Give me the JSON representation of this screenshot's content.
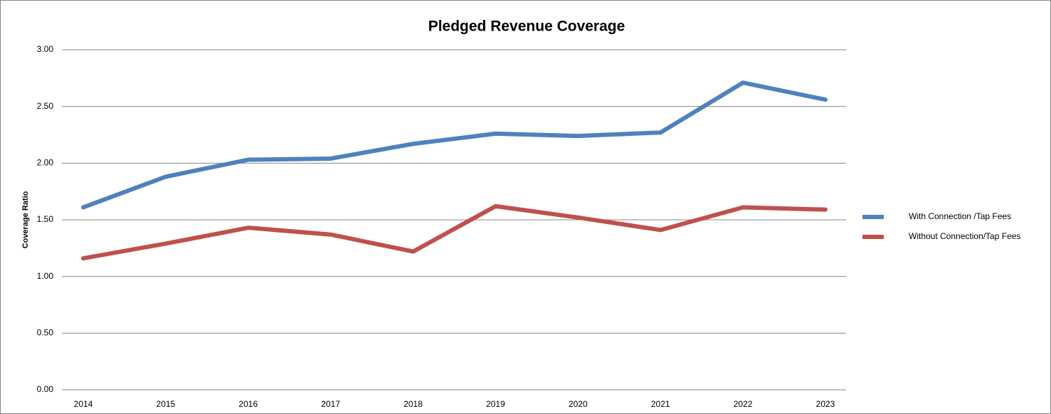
{
  "chart_data": {
    "type": "line",
    "title": "Pledged Revenue Coverage",
    "y_label": "Coverage Ratio",
    "categories": [
      "2014",
      "2015",
      "2016",
      "2017",
      "2018",
      "2019",
      "2020",
      "2021",
      "2022",
      "2023"
    ],
    "series": [
      {
        "name": "With Connection /Tap Fees",
        "color": "#4f81bd",
        "values": [
          1.61,
          1.88,
          2.03,
          2.04,
          2.17,
          2.26,
          2.24,
          2.27,
          2.71,
          2.56
        ]
      },
      {
        "name": "Without Connection/Tap Fees",
        "color": "#c0504d",
        "values": [
          1.16,
          1.29,
          1.43,
          1.37,
          1.22,
          1.62,
          1.52,
          1.41,
          1.61,
          1.59
        ]
      }
    ],
    "ylim": [
      0,
      3
    ],
    "yticks": [
      {
        "value": 0,
        "label": "0.00"
      },
      {
        "value": 0.5,
        "label": "0.50"
      },
      {
        "value": 1,
        "label": "1.00"
      },
      {
        "value": 1.5,
        "label": "1.50"
      },
      {
        "value": 2,
        "label": "2.00"
      },
      {
        "value": 2.5,
        "label": "2.50"
      },
      {
        "value": 3,
        "label": "3.00"
      }
    ],
    "grid": true,
    "legend": "right"
  }
}
